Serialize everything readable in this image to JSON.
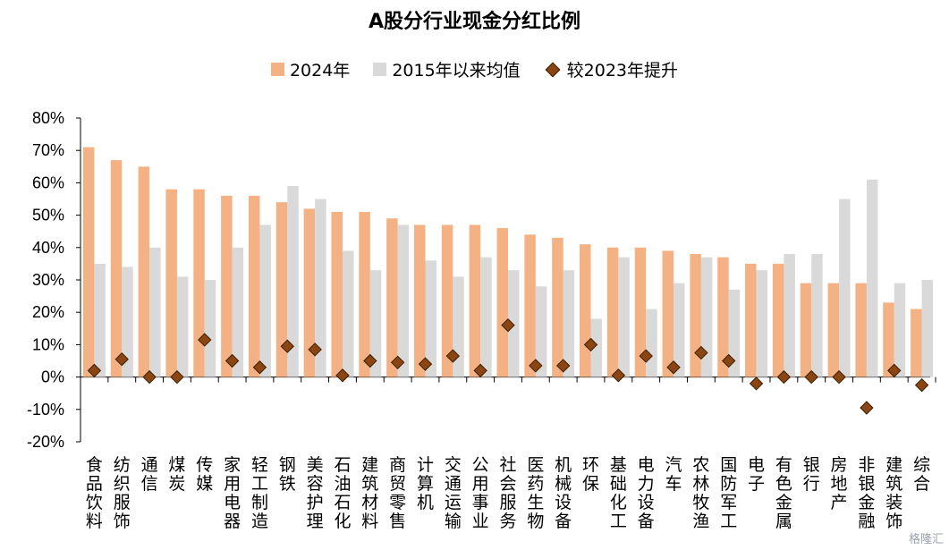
{
  "chart_data": {
    "type": "bar",
    "title": "A股分行业现金分红比例",
    "legend_position": "top",
    "grid": false,
    "ylim": [
      -0.2,
      0.8
    ],
    "yticks": [
      -0.2,
      -0.1,
      0,
      0.1,
      0.2,
      0.3,
      0.4,
      0.5,
      0.6,
      0.7,
      0.8
    ],
    "ytick_labels": [
      "-20%",
      "-10%",
      "0%",
      "10%",
      "20%",
      "30%",
      "40%",
      "50%",
      "60%",
      "70%",
      "80%"
    ],
    "categories": [
      "食品饮料",
      "纺织服饰",
      "通信",
      "煤炭",
      "传媒",
      "家用电器",
      "轻工制造",
      "钢铁",
      "美容护理",
      "石油石化",
      "建筑材料",
      "商贸零售",
      "计算机",
      "交通运输",
      "公用事业",
      "社会服务",
      "医药生物",
      "机械设备",
      "环保",
      "基础化工",
      "电力设备",
      "汽车",
      "农林牧渔",
      "国防军工",
      "电子",
      "有色金属",
      "银行",
      "房地产",
      "非银金融",
      "建筑装饰",
      "综合"
    ],
    "series": [
      {
        "name": "2024年",
        "kind": "bar",
        "color": "#F4B183",
        "values": [
          0.71,
          0.67,
          0.65,
          0.58,
          0.58,
          0.56,
          0.56,
          0.54,
          0.52,
          0.51,
          0.51,
          0.49,
          0.47,
          0.47,
          0.47,
          0.46,
          0.44,
          0.43,
          0.41,
          0.4,
          0.4,
          0.39,
          0.38,
          0.37,
          0.35,
          0.35,
          0.29,
          0.29,
          0.29,
          0.23,
          0.21
        ]
      },
      {
        "name": "2015年以来均值",
        "kind": "bar",
        "color": "#D9D9D9",
        "values": [
          0.35,
          0.34,
          0.4,
          0.31,
          0.3,
          0.4,
          0.47,
          0.59,
          0.55,
          0.39,
          0.33,
          0.47,
          0.36,
          0.31,
          0.37,
          0.33,
          0.28,
          0.33,
          0.18,
          0.37,
          0.21,
          0.29,
          0.37,
          0.27,
          0.33,
          0.38,
          0.38,
          0.55,
          0.61,
          0.29,
          0.3
        ]
      },
      {
        "name": "较2023年提升",
        "kind": "marker",
        "color": "#8B4513",
        "values": [
          0.02,
          0.055,
          0.0,
          0.0,
          0.115,
          0.05,
          0.03,
          0.095,
          0.085,
          0.005,
          0.05,
          0.045,
          0.04,
          0.065,
          0.02,
          0.16,
          0.035,
          0.035,
          0.1,
          0.005,
          0.065,
          0.03,
          0.075,
          0.05,
          -0.02,
          0.0,
          0.0,
          0.0,
          -0.095,
          0.02,
          -0.025
        ]
      }
    ]
  },
  "watermark": "格隆汇"
}
